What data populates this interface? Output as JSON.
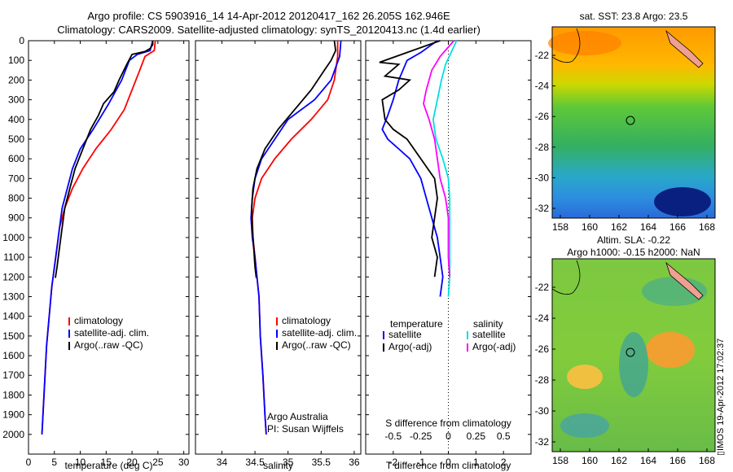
{
  "header": {
    "title_line1": "Argo profile: CS 5903916_14 14-Apr-2012 20120417_162 26.205S 162.946E",
    "title_line2": "Climatology: CARS2009. Satellite-adjusted climatology: synTS_20120413.nc (1.4d earlier)"
  },
  "stamp": "IMOS 19-Apr-2012 17:02:37",
  "colors": {
    "climatology": "#ff0000",
    "satellite": "#0000ff",
    "argo": "#000000",
    "sat_salinity": "#00e0e0",
    "argo_salinity": "#ff00ff"
  },
  "chart_data": [
    {
      "type": "line",
      "id": "temperature",
      "xlabel": "temperature (deg C)",
      "ylabel": "",
      "xlim": [
        0,
        31
      ],
      "ylim": [
        2100,
        0
      ],
      "y_inverted": true,
      "xticks": [
        0,
        5,
        10,
        15,
        20,
        25,
        30
      ],
      "yticks": [
        0,
        100,
        200,
        300,
        400,
        500,
        600,
        700,
        800,
        900,
        1000,
        1100,
        1200,
        1300,
        1400,
        1500,
        1600,
        1700,
        1800,
        1900,
        2000
      ],
      "legend": [
        "climatology",
        "satellite-adj. clim.",
        "Argo(..raw -QC)"
      ],
      "series": [
        {
          "name": "climatology",
          "color": "#ff0000",
          "points": [
            [
              24.5,
              0
            ],
            [
              24.3,
              50
            ],
            [
              22.5,
              80
            ],
            [
              21.5,
              150
            ],
            [
              20,
              250
            ],
            [
              18.5,
              350
            ],
            [
              16,
              450
            ],
            [
              13,
              550
            ],
            [
              10.5,
              650
            ],
            [
              8.5,
              750
            ],
            [
              7,
              850
            ],
            [
              6,
              950
            ],
            [
              5.5,
              1050
            ],
            [
              5,
              1150
            ],
            [
              4.5,
              1250
            ],
            [
              4,
              1400
            ],
            [
              3.5,
              1550
            ],
            [
              3.2,
              1700
            ],
            [
              2.9,
              1850
            ],
            [
              2.6,
              2000
            ]
          ]
        },
        {
          "name": "satellite-adj. clim.",
          "color": "#0000ff",
          "points": [
            [
              24,
              0
            ],
            [
              23.5,
              50
            ],
            [
              21,
              70
            ],
            [
              19.5,
              100
            ],
            [
              18,
              200
            ],
            [
              15.5,
              320
            ],
            [
              12.5,
              450
            ],
            [
              10,
              550
            ],
            [
              8.5,
              650
            ],
            [
              7.5,
              750
            ],
            [
              6.5,
              850
            ],
            [
              6,
              950
            ],
            [
              5.5,
              1050
            ],
            [
              5,
              1150
            ],
            [
              4.5,
              1250
            ],
            [
              4,
              1400
            ],
            [
              3.5,
              1550
            ],
            [
              3.2,
              1700
            ],
            [
              2.9,
              1850
            ],
            [
              2.6,
              2000
            ]
          ]
        },
        {
          "name": "Argo(..raw -QC)",
          "color": "#000000",
          "points": [
            [
              24,
              0
            ],
            [
              24,
              20
            ],
            [
              23.5,
              40
            ],
            [
              22.5,
              55
            ],
            [
              20,
              70
            ],
            [
              19,
              120
            ],
            [
              17.5,
              200
            ],
            [
              16.5,
              260
            ],
            [
              14.5,
              320
            ],
            [
              13.5,
              380
            ],
            [
              12,
              450
            ],
            [
              10.5,
              550
            ],
            [
              9,
              650
            ],
            [
              8,
              750
            ],
            [
              7,
              850
            ],
            [
              6.5,
              950
            ],
            [
              6,
              1050
            ],
            [
              5.5,
              1150
            ],
            [
              5.2,
              1205
            ]
          ]
        }
      ]
    },
    {
      "type": "line",
      "id": "salinity",
      "xlabel": "salinity",
      "xlim": [
        33.6,
        36.1
      ],
      "ylim": [
        2100,
        0
      ],
      "y_inverted": true,
      "xticks": [
        34,
        34.5,
        35,
        35.5,
        36
      ],
      "xtick_labels": [
        "34",
        "34.5",
        "35",
        "35.5",
        "36"
      ],
      "legend": [
        "climatology",
        "satellite-adj. clim.",
        "Argo(..raw -QC)"
      ],
      "annotation": [
        "Argo Australia",
        "PI: Susan Wijffels"
      ],
      "series": [
        {
          "name": "climatology",
          "color": "#ff0000",
          "points": [
            [
              35.75,
              0
            ],
            [
              35.75,
              80
            ],
            [
              35.7,
              200
            ],
            [
              35.6,
              300
            ],
            [
              35.35,
              400
            ],
            [
              35.05,
              500
            ],
            [
              34.8,
              600
            ],
            [
              34.6,
              700
            ],
            [
              34.5,
              800
            ],
            [
              34.46,
              900
            ],
            [
              34.47,
              1000
            ],
            [
              34.5,
              1100
            ],
            [
              34.53,
              1200
            ],
            [
              34.56,
              1300
            ],
            [
              34.58,
              1500
            ],
            [
              34.62,
              1700
            ],
            [
              34.65,
              1900
            ],
            [
              34.67,
              2000
            ]
          ]
        },
        {
          "name": "satellite-adj. clim.",
          "color": "#0000ff",
          "points": [
            [
              35.8,
              0
            ],
            [
              35.78,
              80
            ],
            [
              35.65,
              200
            ],
            [
              35.4,
              300
            ],
            [
              35.0,
              400
            ],
            [
              34.8,
              500
            ],
            [
              34.6,
              600
            ],
            [
              34.5,
              700
            ],
            [
              34.46,
              800
            ],
            [
              34.44,
              900
            ],
            [
              34.46,
              1000
            ],
            [
              34.5,
              1100
            ],
            [
              34.53,
              1200
            ],
            [
              34.56,
              1300
            ],
            [
              34.58,
              1500
            ],
            [
              34.62,
              1700
            ],
            [
              34.65,
              1900
            ],
            [
              34.67,
              2000
            ]
          ]
        },
        {
          "name": "Argo(..raw -QC)",
          "color": "#000000",
          "points": [
            [
              35.7,
              0
            ],
            [
              35.72,
              50
            ],
            [
              35.65,
              100
            ],
            [
              35.55,
              150
            ],
            [
              35.35,
              250
            ],
            [
              35.1,
              350
            ],
            [
              34.85,
              450
            ],
            [
              34.65,
              550
            ],
            [
              34.53,
              650
            ],
            [
              34.47,
              750
            ],
            [
              34.45,
              850
            ],
            [
              34.46,
              950
            ],
            [
              34.48,
              1050
            ],
            [
              34.5,
              1150
            ],
            [
              34.52,
              1205
            ]
          ]
        }
      ]
    },
    {
      "type": "line",
      "id": "difference",
      "xlabel": "T difference from climatology",
      "xlabel_top": "S difference from climatology",
      "xlim": [
        -3,
        3
      ],
      "ylim": [
        2100,
        0
      ],
      "y_inverted": true,
      "xticks": [
        -2,
        -1,
        0,
        1,
        2
      ],
      "top_ticks": [
        -0.5,
        -0.25,
        0,
        0.25,
        0.5
      ],
      "top_tick_labels": [
        "-0.5",
        "-0.25",
        "0",
        "0.25",
        "0.5"
      ],
      "legend_headers": [
        "temperature",
        "salinity"
      ],
      "legend": [
        "satellite",
        "Argo(-adj)",
        "satellite",
        "Argo(-adj)"
      ],
      "series": [
        {
          "name": "satellite",
          "color": "#0000ff",
          "points": [
            [
              -0.4,
              0
            ],
            [
              -0.6,
              20
            ],
            [
              -1,
              60
            ],
            [
              -1.5,
              100
            ],
            [
              -1.8,
              200
            ],
            [
              -2,
              300
            ],
            [
              -2.2,
              380
            ],
            [
              -2.4,
              450
            ],
            [
              -2.2,
              500
            ],
            [
              -1.8,
              550
            ],
            [
              -1.4,
              600
            ],
            [
              -1.2,
              650
            ],
            [
              -1.0,
              700
            ],
            [
              -0.8,
              800
            ],
            [
              -0.6,
              900
            ],
            [
              -0.4,
              1000
            ],
            [
              -0.3,
              1100
            ],
            [
              -0.2,
              1200
            ],
            [
              -0.3,
              1300
            ]
          ]
        },
        {
          "name": "Argo(-adj)",
          "color": "#000000",
          "points": [
            [
              -0.3,
              0
            ],
            [
              -1.5,
              60
            ],
            [
              -2.5,
              110
            ],
            [
              -1.8,
              120
            ],
            [
              -2.3,
              180
            ],
            [
              -1.4,
              200
            ],
            [
              -1.8,
              250
            ],
            [
              -2.4,
              300
            ],
            [
              -2.3,
              400
            ],
            [
              -2,
              450
            ],
            [
              -1.5,
              500
            ],
            [
              -1,
              600
            ],
            [
              -0.5,
              700
            ],
            [
              -0.4,
              800
            ],
            [
              -0.5,
              900
            ],
            [
              -0.6,
              1000
            ],
            [
              -0.4,
              1100
            ],
            [
              -0.5,
              1200
            ]
          ]
        },
        {
          "name": "satellite",
          "color": "#00e0e0",
          "points": [
            [
              0.3,
              0
            ],
            [
              0.1,
              60
            ],
            [
              -0.1,
              120
            ],
            [
              -0.25,
              200
            ],
            [
              -0.4,
              300
            ],
            [
              -0.55,
              400
            ],
            [
              -0.45,
              500
            ],
            [
              -0.2,
              600
            ],
            [
              0,
              700
            ],
            [
              0.05,
              800
            ],
            [
              0.05,
              900
            ],
            [
              0.05,
              1000
            ],
            [
              0.05,
              1100
            ],
            [
              0.05,
              1200
            ],
            [
              0,
              1300
            ]
          ]
        },
        {
          "name": "Argo(-adj)",
          "color": "#ff00ff",
          "points": [
            [
              0.2,
              0
            ],
            [
              -0.3,
              80
            ],
            [
              -0.6,
              150
            ],
            [
              -0.8,
              250
            ],
            [
              -0.9,
              320
            ],
            [
              -0.7,
              400
            ],
            [
              -0.6,
              450
            ],
            [
              -0.5,
              500
            ],
            [
              -0.4,
              600
            ],
            [
              -0.3,
              700
            ],
            [
              -0.1,
              800
            ],
            [
              0,
              900
            ],
            [
              0,
              1000
            ],
            [
              0,
              1100
            ],
            [
              0.05,
              1200
            ]
          ]
        }
      ]
    }
  ],
  "maps": [
    {
      "title": "sat. SST: 23.8 Argo: 23.5",
      "yticks": [
        "-22",
        "-24",
        "-26",
        "-28",
        "-30",
        "-32"
      ],
      "xticks": [
        "158",
        "160",
        "162",
        "164",
        "166",
        "168"
      ]
    },
    {
      "title_line1": "Altim. SLA: -0.22",
      "title_line2": "Argo h1000: -0.15 h2000: NaN",
      "yticks": [
        "-22",
        "-24",
        "-26",
        "-28",
        "-30",
        "-32"
      ],
      "xticks": [
        "158",
        "160",
        "162",
        "164",
        "166",
        "168"
      ]
    }
  ]
}
